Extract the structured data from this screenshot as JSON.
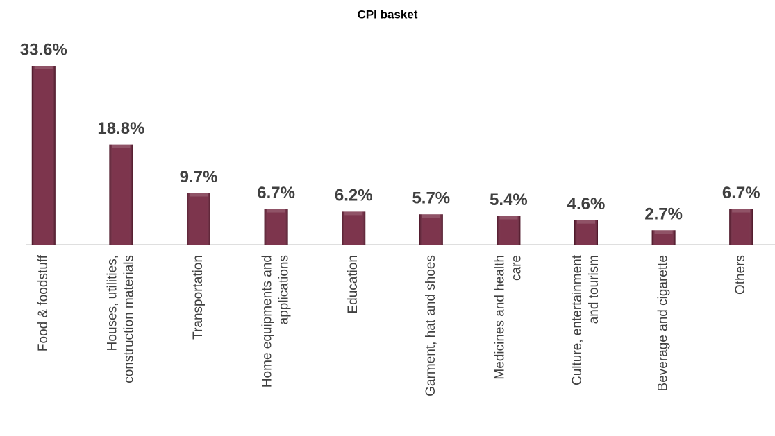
{
  "chart_data": {
    "type": "bar",
    "title": "CPI basket",
    "categories": [
      [
        "Food & foodstuff"
      ],
      [
        "Houses, utilities,",
        "construction materials"
      ],
      [
        "Transportation"
      ],
      [
        "Home equipments and",
        "applications"
      ],
      [
        "Education"
      ],
      [
        "Garment, hat and shoes"
      ],
      [
        "Medicines and health",
        "care"
      ],
      [
        "Culture, entertainment",
        "and tourism"
      ],
      [
        "Beverage and cigarette"
      ],
      [
        "Others"
      ]
    ],
    "values": [
      33.6,
      18.8,
      9.7,
      6.7,
      6.2,
      5.7,
      5.4,
      4.6,
      2.7,
      6.7
    ],
    "value_labels": [
      "33.6%",
      "18.8%",
      "9.7%",
      "6.7%",
      "6.2%",
      "5.7%",
      "5.4%",
      "4.6%",
      "2.7%",
      "6.7%"
    ],
    "color": "#6b1a35"
  }
}
